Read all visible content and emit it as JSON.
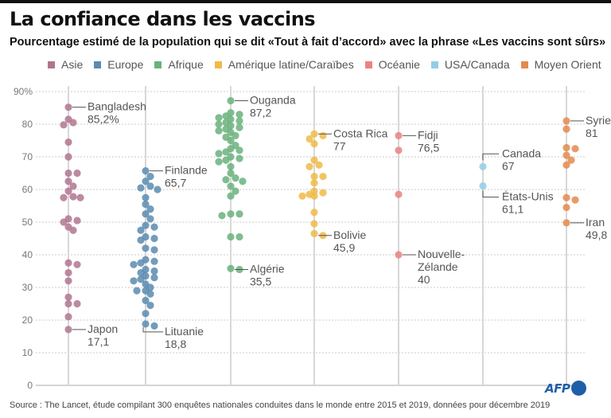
{
  "header": {
    "title": "La confiance dans les vaccins",
    "subtitle": "Pourcentage estimé de la population qui se dit «Tout à fait d’accord» avec la phrase «Les vaccins sont sûrs»"
  },
  "legend": [
    {
      "label": "Asie",
      "color": "#b07590"
    },
    {
      "label": "Europe",
      "color": "#5a8bb0"
    },
    {
      "label": "Afrique",
      "color": "#6ab27c"
    },
    {
      "label": "Amérique latine/Caraïbes",
      "color": "#f0bb48"
    },
    {
      "label": "Océanie",
      "color": "#ea8383"
    },
    {
      "label": "USA/Canada",
      "color": "#93cde8"
    },
    {
      "label": "Moyen Orient",
      "color": "#e38a4f"
    }
  ],
  "footer": {
    "source": "Source : The Lancet, étude compilant 300 enquêtes nationales conduites dans le monde entre 2015 et 2019, données pour décembre 2019",
    "logo_text": "AFP"
  },
  "chart_data": {
    "type": "scatter",
    "title": "La confiance dans les vaccins",
    "subtitle": "Pourcentage estimé de la population qui se dit «Tout à fait d’accord» avec la phrase «Les vaccins sont sûrs»",
    "xlabel": "",
    "ylabel": "",
    "ylim": [
      0,
      90
    ],
    "y_ticks": [
      0,
      10,
      20,
      30,
      40,
      50,
      60,
      70,
      80,
      90
    ],
    "y_tick_labels": [
      "0",
      "10",
      "20",
      "30",
      "40",
      "50",
      "60",
      "70",
      "80",
      "90%"
    ],
    "grid": true,
    "legend_position": "top",
    "categories": [
      "Asie",
      "Europe",
      "Afrique",
      "Amérique latine/Caraïbes",
      "Océanie",
      "USA/Canada",
      "Moyen Orient"
    ],
    "series": [
      {
        "name": "Asie",
        "color": "#b07590",
        "values": [
          85.2,
          81.5,
          80.5,
          79.8,
          74.5,
          70,
          65,
          65,
          62.5,
          61,
          59.5,
          57.5,
          57.8,
          57.5,
          51,
          50.5,
          50,
          48.5,
          47.5,
          37.5,
          37,
          34.5,
          32,
          27,
          25,
          25,
          21,
          17.1
        ],
        "annotations": [
          {
            "label": "Bangladesh",
            "value_label": "85,2%",
            "value": 85.2
          },
          {
            "label": "Japon",
            "value_label": "17,1",
            "value": 17.1
          }
        ]
      },
      {
        "name": "Europe",
        "color": "#5a8bb0",
        "values": [
          65.7,
          64,
          62.5,
          61,
          60.5,
          60,
          57.5,
          55.5,
          54,
          52.5,
          51,
          49,
          48.5,
          47.5,
          45.5,
          45,
          44.5,
          42,
          41.5,
          38.5,
          38,
          37.5,
          37,
          35.5,
          35,
          34.5,
          33.5,
          33,
          32.5,
          32,
          31,
          30,
          29,
          29,
          28,
          26,
          24.5,
          22,
          18.8,
          18.2
        ],
        "annotations": [
          {
            "label": "Finlande",
            "value_label": "65,7",
            "value": 65.7
          },
          {
            "label": "Lituanie",
            "value_label": "18,8",
            "value": 18.8
          }
        ]
      },
      {
        "name": "Afrique",
        "color": "#6ab27c",
        "values": [
          87.2,
          83.5,
          83,
          82.5,
          82,
          81.5,
          81,
          80.5,
          80,
          79.5,
          79,
          78.5,
          78,
          77.5,
          76.5,
          76,
          75,
          73.5,
          72.5,
          72,
          71.5,
          71,
          70,
          69.5,
          69,
          68.5,
          67,
          65,
          63.5,
          63,
          62.5,
          61,
          59.5,
          58,
          52.5,
          52.5,
          52,
          45.5,
          45.5,
          35.8,
          35.5
        ],
        "annotations": [
          {
            "label": "Ouganda",
            "value_label": "87,2",
            "value": 87.2
          },
          {
            "label": "Algérie",
            "value_label": "35,5",
            "value": 35.5
          }
        ]
      },
      {
        "name": "Amérique latine/Caraïbes",
        "color": "#f0bb48",
        "values": [
          77,
          76.5,
          75.5,
          74,
          69,
          67.5,
          67,
          64,
          64,
          62,
          59.5,
          59,
          58.5,
          58,
          58,
          53,
          49.5,
          46.5,
          45.9
        ],
        "annotations": [
          {
            "label": "Costa Rica",
            "value_label": "77",
            "value": 77
          },
          {
            "label": "Bolivie",
            "value_label": "45,9",
            "value": 45.9
          }
        ]
      },
      {
        "name": "Océanie",
        "color": "#ea8383",
        "values": [
          76.5,
          72,
          58.5,
          40
        ],
        "annotations": [
          {
            "label": "Fidji",
            "value_label": "76,5",
            "value": 76.5
          },
          {
            "label": "Nouvelle-Zélande",
            "value_label": "40",
            "value": 40
          }
        ]
      },
      {
        "name": "USA/Canada",
        "color": "#93cde8",
        "values": [
          67,
          61.1
        ],
        "annotations": [
          {
            "label": "Canada",
            "value_label": "67",
            "value": 67
          },
          {
            "label": "États-Unis",
            "value_label": "61,1",
            "value": 61.1
          }
        ]
      },
      {
        "name": "Moyen Orient",
        "color": "#e38a4f",
        "values": [
          81,
          78.5,
          72.5,
          72.8,
          70.5,
          69,
          67.5,
          57.5,
          56.8,
          54.5,
          49.8
        ],
        "annotations": [
          {
            "label": "Syrie",
            "value_label": "81",
            "value": 81
          },
          {
            "label": "Iran",
            "value_label": "49,8",
            "value": 49.8
          }
        ]
      }
    ]
  }
}
